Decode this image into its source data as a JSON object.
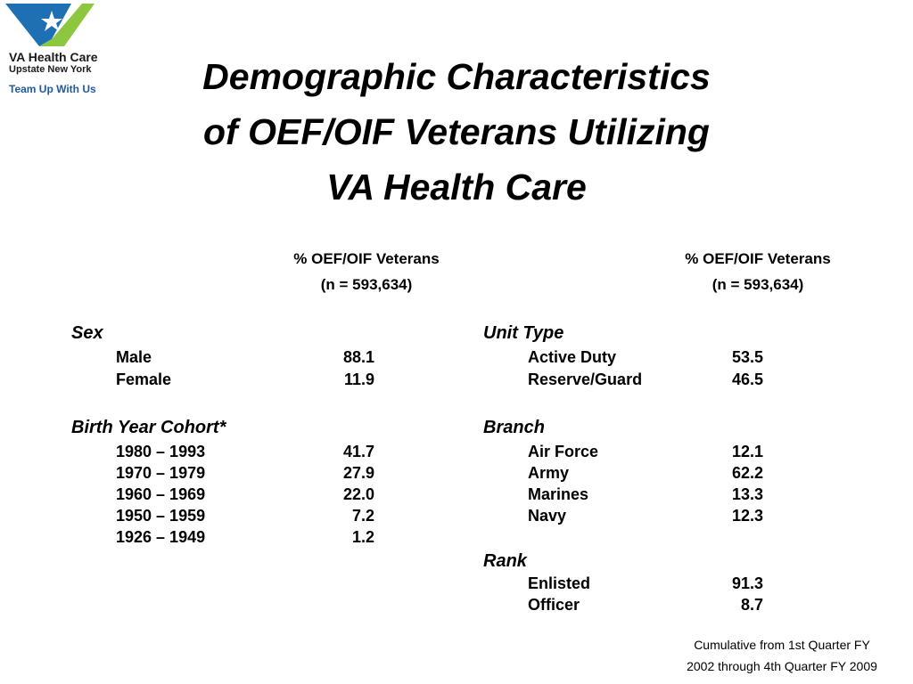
{
  "logo": {
    "line1": "VA Health Care",
    "line2": "Upstate New York",
    "line3": "Team Up With Us",
    "colors": {
      "blue": "#1f6fb5",
      "green": "#8dc63f"
    }
  },
  "title": {
    "line1": "Demographic Characteristics",
    "line2": "of OEF/OIF Veterans Utilizing",
    "line3": "VA Health Care"
  },
  "left_column": {
    "header_line1": "% OEF/OIF Veterans",
    "header_line2": "(n = 593,634)",
    "sections": [
      {
        "title": "Sex",
        "rows": [
          {
            "label": "Male",
            "value": "88.1"
          },
          {
            "label": "Female",
            "value": "11.9"
          }
        ]
      },
      {
        "title": "Birth Year Cohort*",
        "rows": [
          {
            "label": "1980 – 1993",
            "value": "41.7"
          },
          {
            "label": "1970 – 1979",
            "value": "27.9"
          },
          {
            "label": "1960 – 1969",
            "value": "22.0"
          },
          {
            "label": "1950 – 1959",
            "value": "7.2"
          },
          {
            "label": "1926 – 1949",
            "value": "1.2"
          }
        ]
      }
    ]
  },
  "right_column": {
    "header_line1": "% OEF/OIF Veterans",
    "header_line2": "(n = 593,634)",
    "sections": [
      {
        "title": "Unit Type",
        "rows": [
          {
            "label": "Active Duty",
            "value": "53.5"
          },
          {
            "label": "Reserve/Guard",
            "value": "46.5"
          }
        ]
      },
      {
        "title": "Branch",
        "rows": [
          {
            "label": "Air Force",
            "value": "12.1"
          },
          {
            "label": "Army",
            "value": "62.2"
          },
          {
            "label": "Marines",
            "value": "13.3"
          },
          {
            "label": "Navy",
            "value": "12.3"
          }
        ]
      },
      {
        "title": "Rank",
        "rows": [
          {
            "label": "Enlisted",
            "value": "91.3"
          },
          {
            "label": "Officer",
            "value": "8.7"
          }
        ]
      }
    ]
  },
  "footnote": {
    "line1": "Cumulative from 1st Quarter FY",
    "line2": "2002 through 4th Quarter FY 2009"
  }
}
